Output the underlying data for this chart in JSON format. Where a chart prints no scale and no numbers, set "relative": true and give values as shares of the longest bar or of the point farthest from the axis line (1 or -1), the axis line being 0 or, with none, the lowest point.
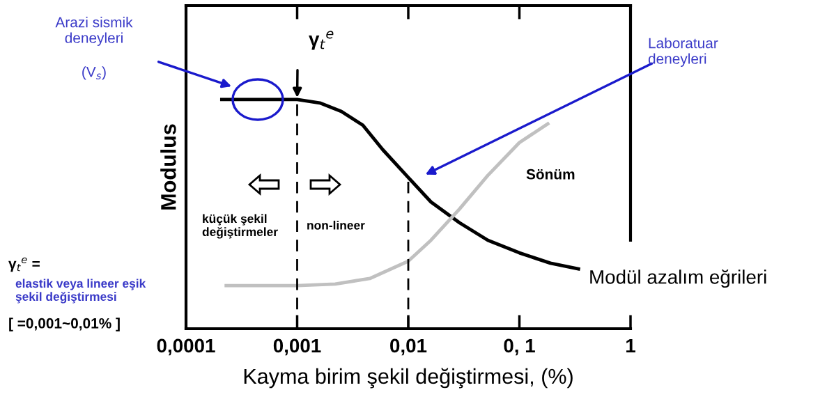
{
  "chart_data": {
    "type": "line",
    "relative": true,
    "log": "x",
    "xlabel": "Kayma birim şekil değiştirmesi, (%)",
    "ylabel": "Modulus",
    "xlim": [
      0.0001,
      1
    ],
    "xticks": [
      {
        "value": 0.0001,
        "label": "0,0001"
      },
      {
        "value": 0.001,
        "label": "0,001"
      },
      {
        "value": 0.01,
        "label": "0,01"
      },
      {
        "value": 0.1,
        "label": "0, 1"
      },
      1
    ],
    "grid": false,
    "marker": "none",
    "line_style": "solid",
    "series": [
      {
        "name": "Modül azalım eğrileri",
        "color": "#000000",
        "x": [
          0.00021,
          0.001,
          0.0016,
          0.0025,
          0.0039,
          0.0059,
          0.01,
          0.016,
          0.029,
          0.052,
          0.1,
          0.19,
          0.34
        ],
        "values": [
          1,
          1,
          0.985,
          0.948,
          0.888,
          0.781,
          0.66,
          0.553,
          0.462,
          0.386,
          0.331,
          0.286,
          0.261
        ]
      },
      {
        "name": "Sönüm",
        "color": "#c0c0c0",
        "x": [
          0.00023,
          0.001,
          0.0022,
          0.0045,
          0.01,
          0.016,
          0.029,
          0.052,
          0.1,
          0.18
        ],
        "values": [
          0.188,
          0.188,
          0.195,
          0.219,
          0.295,
          0.386,
          0.523,
          0.669,
          0.812,
          0.894
        ]
      }
    ],
    "ref_lines": [
      {
        "axis": "x",
        "value": 0.001,
        "line_style": "dashed",
        "color": "#000000"
      },
      {
        "axis": "x",
        "value": 0.01,
        "line_style": "dashed",
        "color": "#000000"
      }
    ],
    "annotations": [
      "Arazi sismik\ndeneyleri",
      "(V$_{s}$)",
      "Laboratuar\ndeneyleri",
      {
        "text": "γ$_{t}$$^{e}$",
        "x": 0.001,
        "y": 1.0
      },
      "küçük şekil\ndeğiştirmeler",
      "non-lineer",
      "γ$_{t}$$^{e}$ =",
      "elastik veya lineer eşik\nşekil değiştirmesi",
      "[ =0,001~0,01% ]"
    ]
  }
}
